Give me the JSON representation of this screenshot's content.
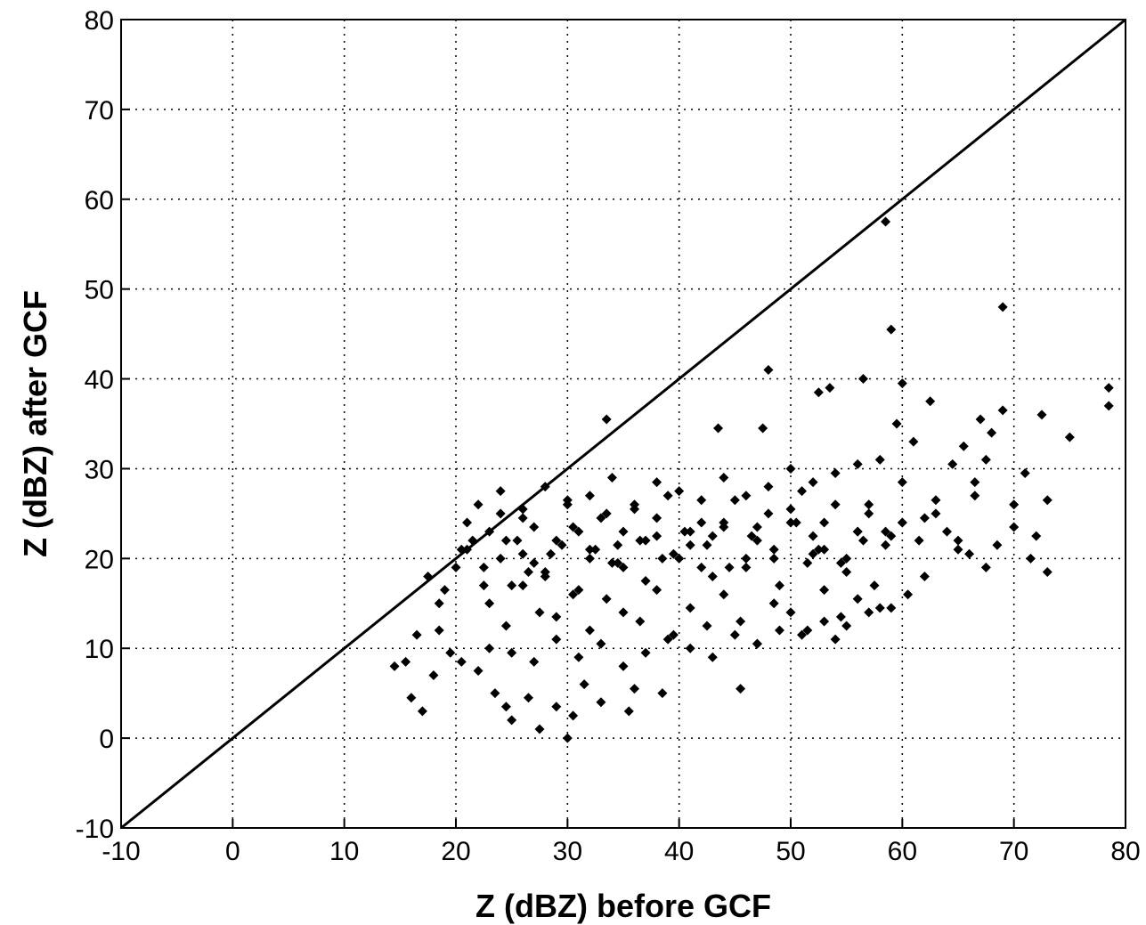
{
  "chart_data": {
    "type": "scatter",
    "xlabel": "Z  (dBZ) before GCF",
    "ylabel": "Z  (dBZ) after GCF",
    "xlim": [
      -10,
      80
    ],
    "ylim": [
      -10,
      80
    ],
    "xticks": [
      -10,
      0,
      10,
      20,
      30,
      40,
      50,
      60,
      70,
      80
    ],
    "yticks": [
      -10,
      0,
      10,
      20,
      30,
      40,
      50,
      60,
      70,
      80
    ],
    "grid": true,
    "grid_style": "dotted",
    "marker": "diamond",
    "marker_color": "#000000",
    "reference_line": {
      "x": [
        -10,
        80
      ],
      "y": [
        -10,
        80
      ]
    },
    "series": [
      {
        "x": [
          58.5,
          69,
          59,
          48,
          78.5,
          78.5,
          60,
          56.5,
          52.5,
          53.5,
          33.5,
          47.5,
          75,
          72.5,
          62.5,
          43.5,
          59.5,
          69,
          68,
          67,
          65.5,
          61,
          64.5,
          67.5,
          71,
          66.5,
          66.5,
          73,
          70,
          14.5,
          15.5,
          16,
          17,
          18,
          16.5,
          18.5,
          19.5,
          20.5,
          22,
          23.5,
          24.5,
          25,
          26.5,
          27.5,
          29,
          30,
          30.5,
          31.5,
          33,
          35.5,
          36,
          38.5,
          45.5,
          54,
          58,
          17.5,
          18.5,
          19,
          20,
          21,
          22.5,
          23,
          24,
          25.5,
          26,
          27,
          28,
          29.5,
          31,
          32,
          33.5,
          34.5,
          35,
          37,
          38,
          39.5,
          41,
          42,
          43,
          44,
          46,
          47,
          48.5,
          50,
          51.5,
          52,
          53,
          55,
          56,
          57,
          58.5,
          60,
          61.5,
          63,
          64,
          65,
          66,
          67.5,
          68.5,
          70,
          71.5,
          72,
          73,
          21.5,
          23,
          24.5,
          26,
          27.5,
          29,
          30.5,
          32,
          33.5,
          35,
          36.5,
          38,
          39.5,
          41,
          42.5,
          44,
          45.5,
          47,
          48.5,
          50,
          51.5,
          53,
          54.5,
          56,
          57.5,
          59,
          60.5,
          62,
          22,
          24,
          26,
          28,
          30,
          32,
          34,
          36,
          38,
          40,
          42,
          44,
          46,
          48,
          50,
          52,
          54,
          56,
          58,
          60,
          23,
          25,
          27,
          29,
          31,
          33,
          35,
          37,
          39,
          41,
          43,
          45,
          47,
          49,
          51,
          53,
          55,
          57,
          20.5,
          22.5,
          24.5,
          26.5,
          28.5,
          30.5,
          32.5,
          34.5,
          36.5,
          38.5,
          40.5,
          42.5,
          44.5,
          46.5,
          48.5,
          50.5,
          52.5,
          54.5,
          56.5,
          58.5,
          25,
          28,
          31,
          34,
          37,
          40,
          43,
          46,
          49,
          52,
          55,
          21,
          24,
          27,
          30,
          33,
          36,
          39,
          42,
          45,
          48,
          51,
          54,
          57,
          60,
          63,
          26,
          29,
          32,
          35,
          38,
          41,
          44,
          47,
          50,
          53,
          56,
          59,
          62,
          65
        ],
        "y": [
          57.5,
          48,
          45.5,
          41,
          39,
          37,
          39.5,
          40,
          38.5,
          39,
          35.5,
          34.5,
          33.5,
          36,
          37.5,
          34.5,
          35,
          36.5,
          34,
          35.5,
          32.5,
          33,
          30.5,
          31,
          29.5,
          28.5,
          27,
          26.5,
          26,
          8,
          8.5,
          4.5,
          3,
          7,
          11.5,
          12,
          9.5,
          8.5,
          7.5,
          5,
          3.5,
          2,
          4.5,
          1,
          3.5,
          0,
          2.5,
          6,
          4,
          3,
          5.5,
          5,
          5.5,
          11,
          14.5,
          18,
          15,
          16.5,
          19,
          21,
          17,
          23,
          20,
          22,
          24.5,
          19.5,
          18,
          21.5,
          23,
          20,
          25,
          21.5,
          19,
          22,
          24.5,
          20.5,
          23,
          19,
          22.5,
          24,
          20,
          23.5,
          21,
          25.5,
          19.5,
          22.5,
          24,
          20,
          23,
          26,
          21.5,
          24,
          22,
          25,
          23,
          21,
          20.5,
          19,
          21.5,
          23.5,
          20,
          22.5,
          18.5,
          22,
          15,
          12.5,
          17,
          14,
          13.5,
          16,
          12,
          15.5,
          14,
          13,
          16.5,
          11.5,
          14.5,
          12.5,
          16,
          13,
          10.5,
          15,
          14,
          12,
          16.5,
          13.5,
          15.5,
          17,
          14.5,
          16,
          18,
          26,
          27.5,
          25.5,
          28,
          26.5,
          27,
          29,
          26,
          28.5,
          27.5,
          26.5,
          29,
          27,
          28,
          30,
          28.5,
          29.5,
          30.5,
          31,
          28.5,
          10,
          9.5,
          8.5,
          11,
          9,
          10.5,
          8,
          9.5,
          11,
          10,
          9,
          11.5,
          10.5,
          12,
          11.5,
          13,
          12.5,
          14,
          21,
          19,
          22,
          18.5,
          20.5,
          23.5,
          21,
          19.5,
          22,
          20,
          23,
          21.5,
          19,
          22.5,
          20,
          24,
          21,
          19.5,
          22,
          23,
          17,
          18.5,
          16.5,
          19.5,
          17.5,
          20,
          18,
          19,
          17,
          20.5,
          18.5,
          24,
          25,
          23.5,
          26,
          24.5,
          25.5,
          27,
          24,
          26.5,
          25,
          27.5,
          26,
          25,
          24,
          26.5,
          20.5,
          22,
          21,
          23,
          22.5,
          21.5,
          23.5,
          22,
          24,
          21,
          23,
          22.5,
          24.5,
          22
        ]
      }
    ]
  }
}
